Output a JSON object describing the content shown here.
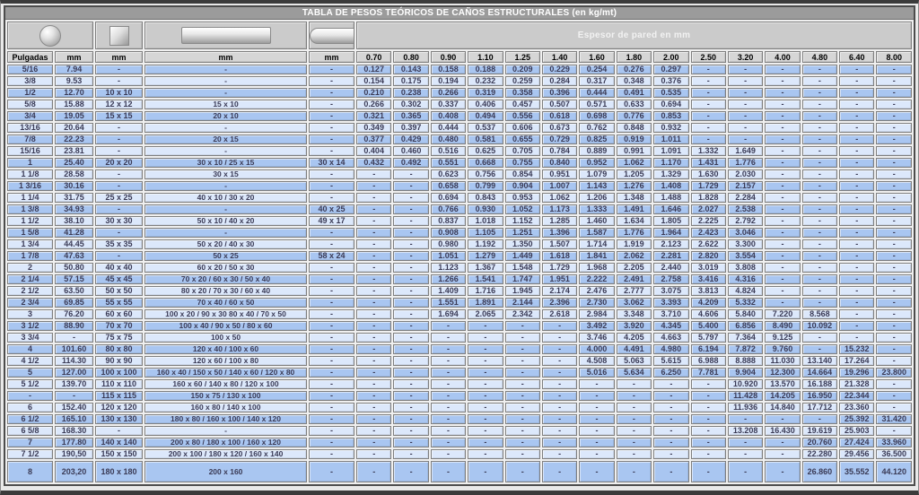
{
  "title": "TABLA DE PESOS TEÓRICOS DE CAÑOS ESTRUCTURALES (en kg/mt)",
  "header": {
    "espesor_label": "Espesor de pared en mm",
    "columns": [
      "Pulgadas",
      "mm",
      "mm",
      "mm",
      "mm"
    ],
    "thickness_columns": [
      "0.70",
      "0.80",
      "0.90",
      "1.10",
      "1.25",
      "1.40",
      "1.60",
      "1.80",
      "2.00",
      "2.50",
      "3.20",
      "4.00",
      "4.80",
      "6.40",
      "8.00"
    ],
    "icons": [
      "round-tube-icon",
      "square-tube-icon",
      "rectangular-tube-icon",
      "oval-tube-icon"
    ]
  },
  "colors": {
    "row_dark": "#a9c6f1",
    "row_light": "#dce8fb",
    "title_bg": "#9b9b9b",
    "icons_bg": "#cbcbcb",
    "header_bg": "#d6d6d6",
    "text": "#3a3a55",
    "espesor_text": "#f2f2f2"
  },
  "rows": [
    [
      "5/16",
      "7.94",
      "-",
      "-",
      "-",
      "0.127",
      "0.143",
      "0.158",
      "0.188",
      "0.209",
      "0.229",
      "0.254",
      "0.276",
      "0.297",
      "-",
      "-",
      "-",
      "-",
      "-",
      "-"
    ],
    [
      "3/8",
      "9.53",
      "-",
      "-",
      "-",
      "0.154",
      "0.175",
      "0.194",
      "0.232",
      "0.259",
      "0.284",
      "0.317",
      "0.348",
      "0.376",
      "-",
      "-",
      "-",
      "-",
      "-",
      "-"
    ],
    [
      "1/2",
      "12.70",
      "10 x 10",
      "-",
      "-",
      "0.210",
      "0.238",
      "0.266",
      "0.319",
      "0.358",
      "0.396",
      "0.444",
      "0.491",
      "0.535",
      "-",
      "-",
      "-",
      "-",
      "-",
      "-"
    ],
    [
      "5/8",
      "15.88",
      "12 x 12",
      "15 x 10",
      "-",
      "0.266",
      "0.302",
      "0.337",
      "0.406",
      "0.457",
      "0.507",
      "0.571",
      "0.633",
      "0.694",
      "-",
      "-",
      "-",
      "-",
      "-",
      "-"
    ],
    [
      "3/4",
      "19.05",
      "15 x 15",
      "20 x 10",
      "-",
      "0.321",
      "0.365",
      "0.408",
      "0.494",
      "0.556",
      "0.618",
      "0.698",
      "0.776",
      "0.853",
      "-",
      "-",
      "-",
      "-",
      "-",
      "-"
    ],
    [
      "13/16",
      "20.64",
      "-",
      "-",
      "-",
      "0.349",
      "0.397",
      "0.444",
      "0.537",
      "0.606",
      "0.673",
      "0.762",
      "0.848",
      "0.932",
      "-",
      "-",
      "-",
      "-",
      "-",
      "-"
    ],
    [
      "7/8",
      "22.23",
      "-",
      "20 x 15",
      "-",
      "0.377",
      "0.429",
      "0.480",
      "0.581",
      "0.655",
      "0.729",
      "0.825",
      "0.919",
      "1.011",
      "-",
      "-",
      "-",
      "-",
      "-",
      "-"
    ],
    [
      "15/16",
      "23.81",
      "-",
      "-",
      "-",
      "0.404",
      "0.460",
      "0.516",
      "0.625",
      "0.705",
      "0.784",
      "0.889",
      "0.991",
      "1.091",
      "1.332",
      "1.649",
      "-",
      "-",
      "-",
      "-"
    ],
    [
      "1",
      "25.40",
      "20 x 20",
      "30 x 10 / 25 x 15",
      "30 x 14",
      "0.432",
      "0.492",
      "0.551",
      "0.668",
      "0.755",
      "0.840",
      "0.952",
      "1.062",
      "1.170",
      "1.431",
      "1.776",
      "-",
      "-",
      "-",
      "-"
    ],
    [
      "1 1/8",
      "28.58",
      "-",
      "30 x 15",
      "-",
      "-",
      "-",
      "0.623",
      "0.756",
      "0.854",
      "0.951",
      "1.079",
      "1.205",
      "1.329",
      "1.630",
      "2.030",
      "-",
      "-",
      "-",
      "-"
    ],
    [
      "1 3/16",
      "30.16",
      "-",
      "-",
      "-",
      "-",
      "-",
      "0.658",
      "0.799",
      "0.904",
      "1.007",
      "1.143",
      "1.276",
      "1.408",
      "1.729",
      "2.157",
      "-",
      "-",
      "-",
      "-"
    ],
    [
      "1 1/4",
      "31.75",
      "25 x 25",
      "40 x 10 / 30 x 20",
      "-",
      "-",
      "-",
      "0.694",
      "0.843",
      "0.953",
      "1.062",
      "1.206",
      "1.348",
      "1.488",
      "1.828",
      "2.284",
      "-",
      "-",
      "-",
      "-"
    ],
    [
      "1 3/8",
      "34.93",
      "-",
      "-",
      "40 x 25",
      "-",
      "-",
      "0.766",
      "0.930",
      "1.052",
      "1.173",
      "1.333",
      "1.491",
      "1.646",
      "2.027",
      "2.538",
      "-",
      "-",
      "-",
      "-"
    ],
    [
      "1 1/2",
      "38.10",
      "30 x 30",
      "50 x 10 / 40 x 20",
      "49 x 17",
      "-",
      "-",
      "0.837",
      "1.018",
      "1.152",
      "1.285",
      "1.460",
      "1.634",
      "1.805",
      "2.225",
      "2.792",
      "-",
      "-",
      "-",
      "-"
    ],
    [
      "1 5/8",
      "41.28",
      "-",
      "-",
      "-",
      "-",
      "-",
      "0.908",
      "1.105",
      "1.251",
      "1.396",
      "1.587",
      "1.776",
      "1.964",
      "2.423",
      "3.046",
      "-",
      "-",
      "-",
      "-"
    ],
    [
      "1 3/4",
      "44.45",
      "35 x 35",
      "50 x 20 / 40 x 30",
      "-",
      "-",
      "-",
      "0.980",
      "1.192",
      "1.350",
      "1.507",
      "1.714",
      "1.919",
      "2.123",
      "2.622",
      "3.300",
      "-",
      "-",
      "-",
      "-"
    ],
    [
      "1 7/8",
      "47.63",
      "-",
      "50 x 25",
      "58 x 24",
      "-",
      "-",
      "1.051",
      "1.279",
      "1.449",
      "1.618",
      "1.841",
      "2.062",
      "2.281",
      "2.820",
      "3.554",
      "-",
      "-",
      "-",
      "-"
    ],
    [
      "2",
      "50.80",
      "40 x 40",
      "60 x 20 / 50 x 30",
      "-",
      "-",
      "-",
      "1.123",
      "1.367",
      "1.548",
      "1.729",
      "1.968",
      "2.205",
      "2.440",
      "3.019",
      "3.808",
      "-",
      "-",
      "-",
      "-"
    ],
    [
      "2 1/4",
      "57.15",
      "45 x 45",
      "70 x 20 / 60 x 30 / 50 x 40",
      "-",
      "-",
      "-",
      "1.266",
      "1.541",
      "1.747",
      "1.951",
      "2.222",
      "2.491",
      "2.758",
      "3.416",
      "4.316",
      "-",
      "-",
      "-",
      "-"
    ],
    [
      "2 1/2",
      "63.50",
      "50 x 50",
      "80 x 20 / 70 x 30 / 60 x 40",
      "-",
      "-",
      "-",
      "1.409",
      "1.716",
      "1.945",
      "2.174",
      "2.476",
      "2.777",
      "3.075",
      "3.813",
      "4.824",
      "-",
      "-",
      "-",
      "-"
    ],
    [
      "2 3/4",
      "69.85",
      "55 x 55",
      "70 x 40 / 60 x 50",
      "-",
      "-",
      "-",
      "1.551",
      "1.891",
      "2.144",
      "2.396",
      "2.730",
      "3.062",
      "3.393",
      "4.209",
      "5.332",
      "-",
      "-",
      "-",
      "-"
    ],
    [
      "3",
      "76.20",
      "60 x 60",
      "100 x 20 / 90 x 30 80 x 40 / 70 x 50",
      "-",
      "-",
      "-",
      "1.694",
      "2.065",
      "2.342",
      "2.618",
      "2.984",
      "3.348",
      "3.710",
      "4.606",
      "5.840",
      "7.220",
      "8.568",
      "-",
      "-"
    ],
    [
      "3 1/2",
      "88.90",
      "70 x 70",
      "100 x 40 / 90 x 50 / 80 x 60",
      "-",
      "-",
      "-",
      "-",
      "-",
      "-",
      "-",
      "3.492",
      "3.920",
      "4.345",
      "5.400",
      "6.856",
      "8.490",
      "10.092",
      "-",
      "-"
    ],
    [
      "3 3/4",
      "-",
      "75 x 75",
      "100 x 50",
      "-",
      "-",
      "-",
      "-",
      "-",
      "-",
      "-",
      "3.746",
      "4.205",
      "4.663",
      "5.797",
      "7.364",
      "9.125",
      "-",
      "-",
      "-"
    ],
    [
      "4",
      "101.60",
      "80 x 80",
      "120 x 40 / 100 x 60",
      "-",
      "-",
      "-",
      "-",
      "-",
      "-",
      "-",
      "4.000",
      "4.491",
      "4.980",
      "6.194",
      "7.872",
      "9.760",
      "-",
      "15.232",
      "-"
    ],
    [
      "4 1/2",
      "114.30",
      "90 x 90",
      "120 x 60 / 100 x 80",
      "-",
      "-",
      "-",
      "-",
      "-",
      "-",
      "-",
      "4.508",
      "5.063",
      "5.615",
      "6.988",
      "8.888",
      "11.030",
      "13.140",
      "17.264",
      "-"
    ],
    [
      "5",
      "127.00",
      "100 x 100",
      "160 x 40 / 150 x 50 / 140 x 60 / 120 x 80",
      "-",
      "-",
      "-",
      "-",
      "-",
      "-",
      "-",
      "5.016",
      "5.634",
      "6.250",
      "7.781",
      "9.904",
      "12.300",
      "14.664",
      "19.296",
      "23.800"
    ],
    [
      "5 1/2",
      "139.70",
      "110 x 110",
      "160 x 60 / 140 x 80 / 120 x 100",
      "-",
      "-",
      "-",
      "-",
      "-",
      "-",
      "-",
      "-",
      "-",
      "-",
      "-",
      "10.920",
      "13.570",
      "16.188",
      "21.328",
      "-"
    ],
    [
      "-",
      "-",
      "115 x 115",
      "150 x 75 / 130 x 100",
      "-",
      "-",
      "-",
      "-",
      "-",
      "-",
      "-",
      "-",
      "-",
      "-",
      "-",
      "11.428",
      "14.205",
      "16.950",
      "22.344",
      "-"
    ],
    [
      "6",
      "152.40",
      "120 x 120",
      "160 x 80 / 140 x 100",
      "-",
      "-",
      "-",
      "-",
      "-",
      "-",
      "-",
      "-",
      "-",
      "-",
      "-",
      "11.936",
      "14.840",
      "17.712",
      "23.360",
      "-"
    ],
    [
      "6 1/2",
      "165.10",
      "130 x 130",
      "180 x 80 / 160 x 100 / 140 x 120",
      "-",
      "-",
      "-",
      "-",
      "-",
      "-",
      "-",
      "-",
      "-",
      "-",
      "-",
      "-",
      "-",
      "-",
      "25.392",
      "31.420"
    ],
    [
      "6 5/8",
      "168.30",
      "-",
      "-",
      "-",
      "-",
      "-",
      "-",
      "-",
      "-",
      "-",
      "-",
      "-",
      "-",
      "-",
      "13.208",
      "16.430",
      "19.619",
      "25.903",
      "-"
    ],
    [
      "7",
      "177.80",
      "140 x 140",
      "200 x 80 / 180 x 100 / 160 x 120",
      "-",
      "-",
      "-",
      "-",
      "-",
      "-",
      "-",
      "-",
      "-",
      "-",
      "-",
      "-",
      "-",
      "20.760",
      "27.424",
      "33.960"
    ],
    [
      "7 1/2",
      "190,50",
      "150 x 150",
      "200 x 100 / 180 x 120 / 160 x 140",
      "-",
      "-",
      "-",
      "-",
      "-",
      "-",
      "-",
      "-",
      "-",
      "-",
      "-",
      "-",
      "-",
      "22.280",
      "29.456",
      "36.500"
    ],
    [
      "8",
      "203,20",
      "180 x 180",
      "200 x 160",
      "-",
      "-",
      "-",
      "-",
      "-",
      "-",
      "-",
      "-",
      "-",
      "-",
      "-",
      "-",
      "-",
      "26.860",
      "35.552",
      "44.120"
    ]
  ]
}
